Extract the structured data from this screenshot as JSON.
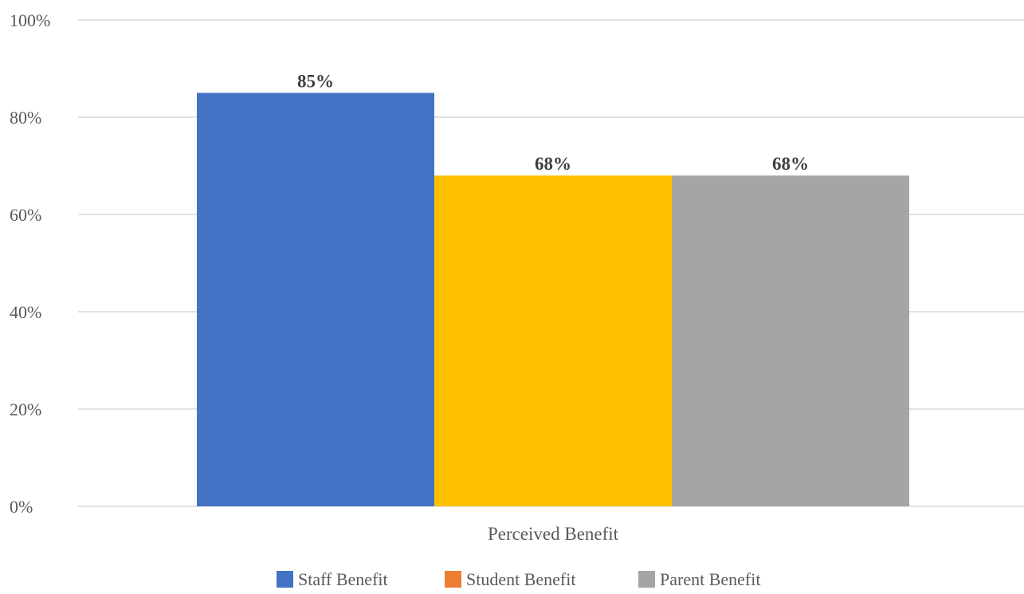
{
  "chart_data": {
    "type": "bar",
    "categories": [
      "Perceived Benefit"
    ],
    "series": [
      {
        "name": "Staff Benefit",
        "values": [
          85
        ],
        "label": "85%",
        "color": "#4472C4",
        "legend_color": "#4472C4"
      },
      {
        "name": "Student Benefit",
        "values": [
          68
        ],
        "label": "68%",
        "color": "#FFC000",
        "legend_color": "#ED7D31"
      },
      {
        "name": "Parent Benefit",
        "values": [
          68
        ],
        "label": "68%",
        "color": "#A5A5A5",
        "legend_color": "#A5A5A5"
      }
    ],
    "ylim": [
      0,
      100
    ],
    "yticks": [
      {
        "value": 0,
        "label": "0%"
      },
      {
        "value": 20,
        "label": "20%"
      },
      {
        "value": 40,
        "label": "40%"
      },
      {
        "value": 60,
        "label": "60%"
      },
      {
        "value": 80,
        "label": "80%"
      },
      {
        "value": 100,
        "label": "100%"
      }
    ],
    "title": "",
    "xlabel": "",
    "ylabel": "",
    "grid": true,
    "legend_position": "bottom",
    "gridline_color": "#D9D9D9"
  }
}
